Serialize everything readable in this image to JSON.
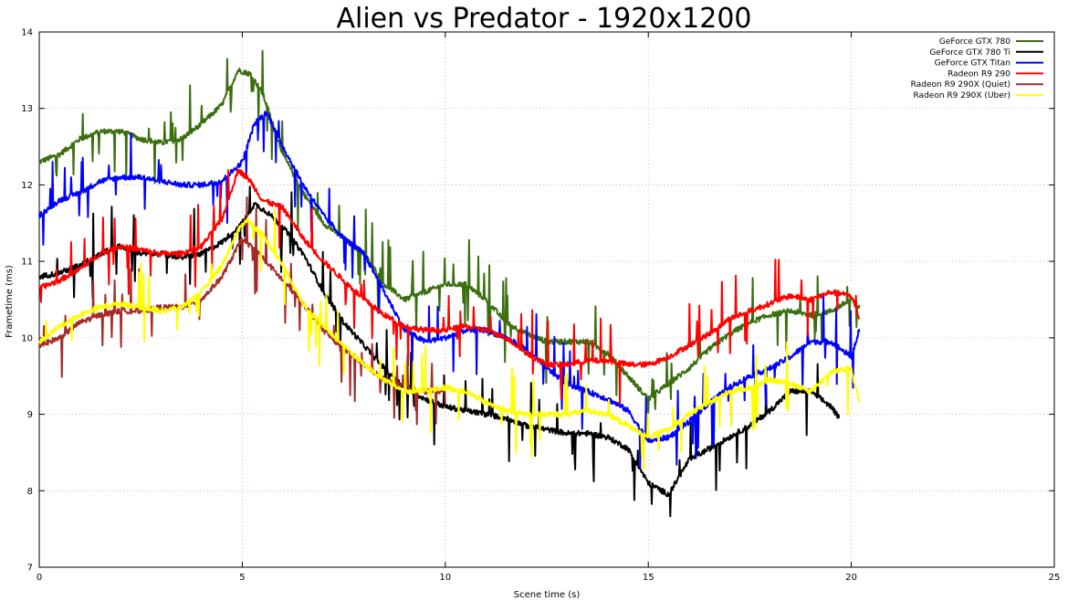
{
  "chart_data": {
    "type": "line",
    "title": "Alien vs Predator - 1920x1200",
    "xlabel": "Scene time (s)",
    "ylabel": "Frametime (ms)",
    "xlim": [
      0,
      25
    ],
    "ylim": [
      7,
      14
    ],
    "xticks": [
      0,
      5,
      10,
      15,
      20,
      25
    ],
    "yticks": [
      7,
      8,
      9,
      10,
      11,
      12,
      13,
      14
    ],
    "grid": true,
    "legend_position": "top-right",
    "series": [
      {
        "name": "GeForce GTX 780",
        "color": "#3a6e0f",
        "x": [
          0,
          0.5,
          1,
          1.5,
          2,
          2.5,
          3,
          3.5,
          4,
          4.5,
          4.9,
          5.2,
          5.5,
          6,
          6.5,
          7,
          7.5,
          8,
          8.5,
          9,
          9.5,
          10,
          10.5,
          11,
          11.5,
          12,
          12.5,
          13,
          13.5,
          14,
          14.5,
          15,
          15.5,
          16,
          16.5,
          17,
          17.5,
          18,
          18.5,
          19,
          19.5,
          20,
          20.2
        ],
        "y": [
          12.3,
          12.4,
          12.6,
          12.7,
          12.7,
          12.6,
          12.55,
          12.6,
          12.8,
          13.05,
          13.5,
          13.45,
          13.2,
          12.4,
          11.9,
          11.5,
          11.3,
          11.1,
          10.7,
          10.5,
          10.6,
          10.7,
          10.7,
          10.5,
          10.2,
          10.05,
          9.95,
          9.95,
          9.95,
          9.8,
          9.5,
          9.2,
          9.4,
          9.6,
          9.85,
          10.05,
          10.2,
          10.3,
          10.35,
          10.3,
          10.35,
          10.5,
          10.4
        ]
      },
      {
        "name": "GeForce GTX 780 Ti",
        "color": "#000000",
        "x": [
          0,
          0.5,
          1,
          1.5,
          2,
          2.5,
          3,
          3.5,
          4,
          4.5,
          5,
          5.3,
          5.6,
          6,
          6.5,
          7,
          7.5,
          8,
          8.5,
          9,
          9.5,
          10,
          10.5,
          11,
          11.5,
          12,
          12.5,
          13,
          13.5,
          14,
          14.5,
          15,
          15.5,
          16,
          16.5,
          17,
          17.5,
          18,
          18.5,
          19,
          19.5,
          19.7
        ],
        "y": [
          10.8,
          10.85,
          10.95,
          11.1,
          11.2,
          11.1,
          11.1,
          11.05,
          11.1,
          11.25,
          11.5,
          11.75,
          11.65,
          11.45,
          11.1,
          10.6,
          10.2,
          9.9,
          9.6,
          9.35,
          9.2,
          9.1,
          9.05,
          9.0,
          8.95,
          8.85,
          8.8,
          8.75,
          8.75,
          8.7,
          8.55,
          8.1,
          7.95,
          8.4,
          8.55,
          8.7,
          8.85,
          9.05,
          9.3,
          9.3,
          9.1,
          8.95
        ]
      },
      {
        "name": "GeForce GTX Titan",
        "color": "#0000ff",
        "x": [
          0,
          0.5,
          1,
          1.5,
          2,
          2.5,
          3,
          3.5,
          4,
          4.5,
          5,
          5.3,
          5.6,
          6,
          6.5,
          7,
          7.5,
          8,
          8.5,
          9,
          9.5,
          10,
          10.5,
          11,
          11.5,
          12,
          12.5,
          13,
          13.5,
          14,
          14.5,
          15,
          15.5,
          16,
          16.5,
          17,
          17.5,
          18,
          18.5,
          19,
          19.5,
          20,
          20.2
        ],
        "y": [
          11.6,
          11.8,
          11.9,
          12.05,
          12.1,
          12.1,
          12.05,
          12.0,
          12.0,
          12.05,
          12.3,
          12.8,
          12.95,
          12.5,
          12.0,
          11.6,
          11.3,
          11.1,
          10.6,
          10.1,
          9.95,
          10.0,
          10.1,
          10.1,
          10.0,
          9.85,
          9.6,
          9.4,
          9.3,
          9.2,
          9.05,
          8.65,
          8.7,
          8.9,
          9.15,
          9.35,
          9.5,
          9.6,
          9.75,
          9.95,
          9.95,
          9.75,
          10.1
        ]
      },
      {
        "name": "Radeon R9 290",
        "color": "#ff0000",
        "x": [
          0,
          0.5,
          1,
          1.5,
          2,
          2.5,
          3,
          3.5,
          4,
          4.5,
          4.9,
          5.2,
          5.5,
          6,
          6.5,
          7,
          7.5,
          8,
          8.5,
          9,
          9.5,
          10,
          10.5,
          11,
          11.5,
          12,
          12.5,
          13,
          13.5,
          14,
          14.5,
          15,
          15.5,
          16,
          16.5,
          17,
          17.5,
          18,
          18.5,
          19,
          19.5,
          20,
          20.2
        ],
        "y": [
          10.65,
          10.75,
          10.9,
          11.1,
          11.2,
          11.15,
          11.1,
          11.1,
          11.2,
          11.55,
          12.2,
          12.05,
          11.8,
          11.7,
          11.3,
          11.0,
          10.75,
          10.5,
          10.3,
          10.15,
          10.1,
          10.1,
          10.15,
          10.1,
          10.0,
          9.8,
          9.65,
          9.65,
          9.7,
          9.7,
          9.65,
          9.65,
          9.75,
          9.9,
          10.05,
          10.25,
          10.35,
          10.45,
          10.55,
          10.5,
          10.6,
          10.55,
          10.25
        ]
      },
      {
        "name": "Radeon R9 290X (Quiet)",
        "color": "#a52a2a",
        "x": [
          0,
          0.5,
          1,
          1.5,
          2,
          2.5,
          3,
          3.5,
          4,
          4.5,
          5,
          5.5,
          6,
          6.5,
          7,
          7.5,
          8,
          8.5,
          9,
          9.5,
          10
        ],
        "y": [
          9.9,
          10.0,
          10.2,
          10.3,
          10.35,
          10.35,
          10.4,
          10.4,
          10.5,
          10.8,
          11.3,
          11.05,
          10.75,
          10.45,
          10.1,
          9.85,
          9.65,
          9.45,
          9.35,
          9.3,
          9.3
        ]
      },
      {
        "name": "Radeon R9 290X (Uber)",
        "color": "#ffff00",
        "x": [
          0,
          0.5,
          1,
          1.5,
          2,
          2.5,
          3,
          3.5,
          4,
          4.5,
          4.9,
          5.1,
          5.5,
          6,
          6.5,
          7,
          7.5,
          8,
          8.5,
          9,
          9.5,
          10,
          10.5,
          11,
          11.5,
          12,
          12.5,
          13,
          13.5,
          14,
          14.5,
          15,
          15.5,
          16,
          16.5,
          17,
          17.5,
          18,
          18.5,
          19,
          19.5,
          20,
          20.2
        ],
        "y": [
          9.95,
          10.15,
          10.3,
          10.4,
          10.45,
          10.4,
          10.35,
          10.4,
          10.6,
          10.95,
          11.4,
          11.55,
          11.35,
          10.95,
          10.45,
          10.15,
          9.9,
          9.65,
          9.45,
          9.3,
          9.3,
          9.35,
          9.3,
          9.15,
          9.05,
          9.0,
          9.0,
          9.0,
          9.05,
          9.0,
          8.85,
          8.7,
          8.8,
          9.0,
          9.15,
          9.3,
          9.35,
          9.45,
          9.4,
          9.3,
          9.55,
          9.6,
          9.15
        ]
      }
    ]
  }
}
